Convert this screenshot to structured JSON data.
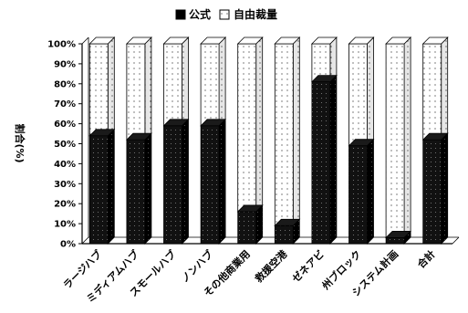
{
  "chart_data": {
    "type": "bar",
    "stacked": true,
    "percent": true,
    "three_d": true,
    "categories": [
      "ラージハブ",
      "ミディアムハブ",
      "スモールハブ",
      "ノンハブ",
      "その他商業用",
      "救援空港",
      "ゼネアビ",
      "州ブロック",
      "システム計画",
      "合計"
    ],
    "series": [
      {
        "name": "公式",
        "values": [
          54,
          52,
          59,
          59,
          16,
          9,
          81,
          49,
          3,
          52
        ],
        "pattern": "dark-dotted"
      },
      {
        "name": "自由裁量",
        "values": [
          46,
          48,
          41,
          41,
          84,
          91,
          19,
          51,
          97,
          48
        ],
        "pattern": "light-dotted"
      }
    ],
    "ylabel": "割合(%)",
    "ylim": [
      0,
      100
    ],
    "yticks": [
      "0%",
      "10%",
      "20%",
      "30%",
      "40%",
      "50%",
      "60%",
      "70%",
      "80%",
      "90%",
      "100%"
    ],
    "legend_position": "top-center",
    "grid": false
  }
}
